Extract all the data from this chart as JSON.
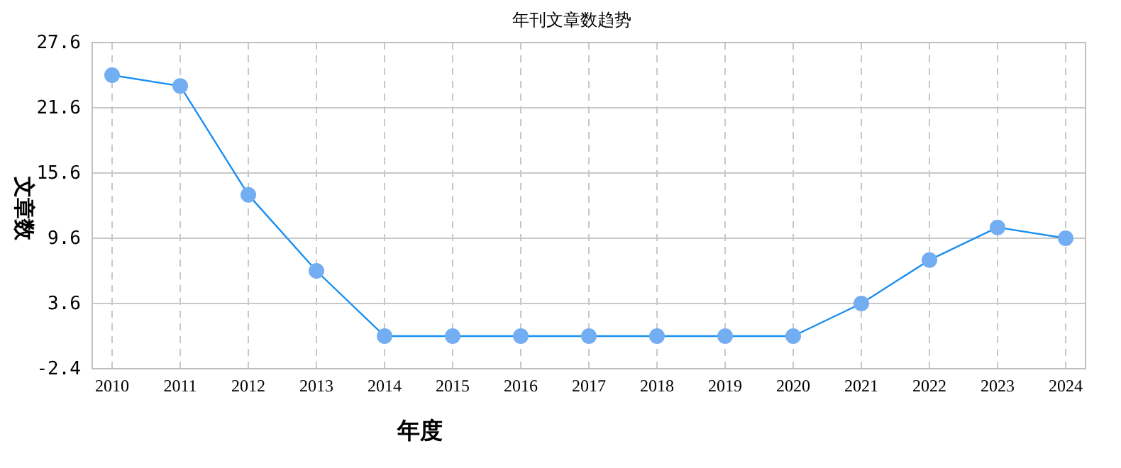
{
  "chart_data": {
    "type": "line",
    "title": "年刊文章数趋势",
    "xlabel": "年度",
    "ylabel": "文章数",
    "categories": [
      "2010",
      "2011",
      "2012",
      "2013",
      "2014",
      "2015",
      "2016",
      "2017",
      "2018",
      "2019",
      "2020",
      "2021",
      "2022",
      "2023",
      "2024"
    ],
    "series": [
      {
        "color": "#1a8ff0",
        "values": [
          24.6,
          23.6,
          13.6,
          6.6,
          0.6,
          0.6,
          0.6,
          0.6,
          0.6,
          0.6,
          0.6,
          3.6,
          7.6,
          10.6,
          9.6
        ]
      }
    ],
    "ylim": [
      -2.4,
      27.6
    ],
    "yticks": [
      -2.4,
      3.6,
      9.6,
      15.6,
      21.6,
      27.6
    ],
    "grid": true,
    "marker": "circle",
    "line_style": "solid"
  }
}
